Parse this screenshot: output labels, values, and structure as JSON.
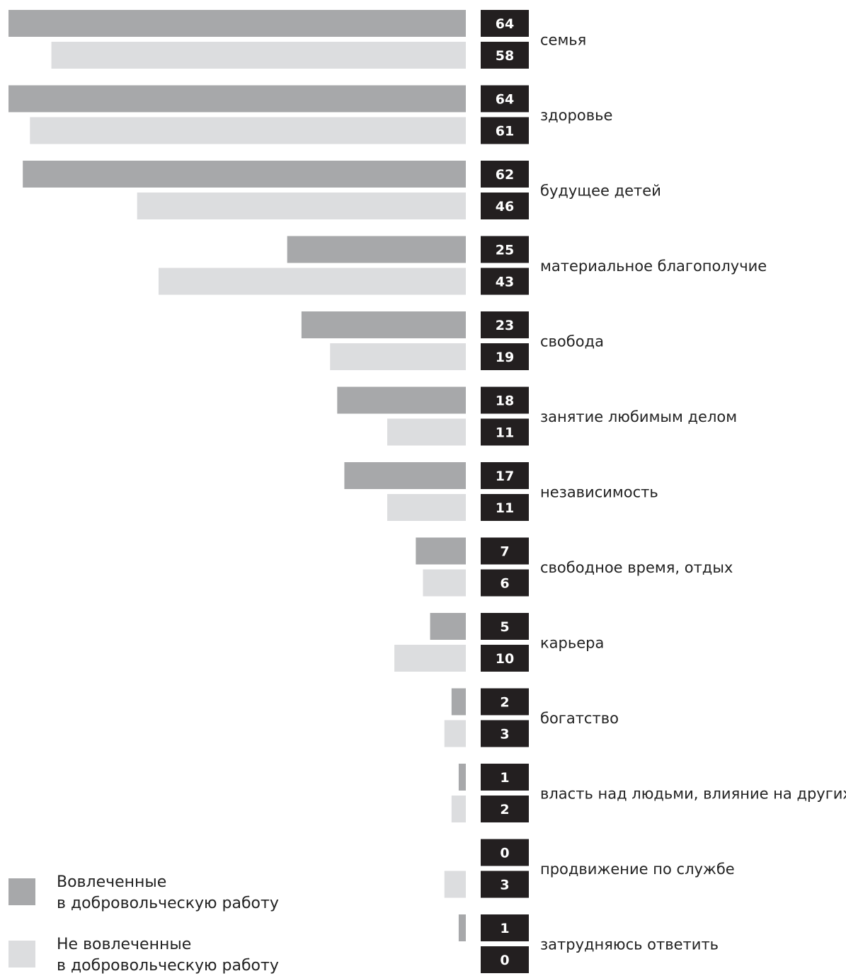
{
  "chart_data": {
    "type": "bar",
    "orientation": "horizontal",
    "categories": [
      "семья",
      "здоровье",
      "будущее детей",
      "материальное благополучие",
      "свобода",
      "занятие любимым делом",
      "независимость",
      "свободное время, отдых",
      "карьера",
      "богатство",
      "власть над людьми, влияние на других",
      "продвижение по службе",
      "затрудняюсь ответить"
    ],
    "series": [
      {
        "name": "Вовлеченные в добровольческую работу",
        "color": "#a7a8aa",
        "values": [
          64,
          64,
          62,
          25,
          23,
          18,
          17,
          7,
          5,
          2,
          1,
          0,
          1
        ]
      },
      {
        "name": "Не вовлеченные в добровольческую работу",
        "color": "#dcdddf",
        "values": [
          58,
          61,
          46,
          43,
          19,
          11,
          11,
          6,
          10,
          3,
          2,
          3,
          0
        ]
      }
    ],
    "value_label_color": "#231f20",
    "xlim": [
      0,
      64
    ],
    "legend": {
      "placement": "bottom-left",
      "entries": [
        {
          "line1": "Вовлеченные",
          "line2": "в добровольческую работу",
          "color": "#a7a8aa"
        },
        {
          "line1": "Не вовлеченные",
          "line2": "в добровольческую работу",
          "color": "#dcdddf"
        }
      ]
    }
  }
}
